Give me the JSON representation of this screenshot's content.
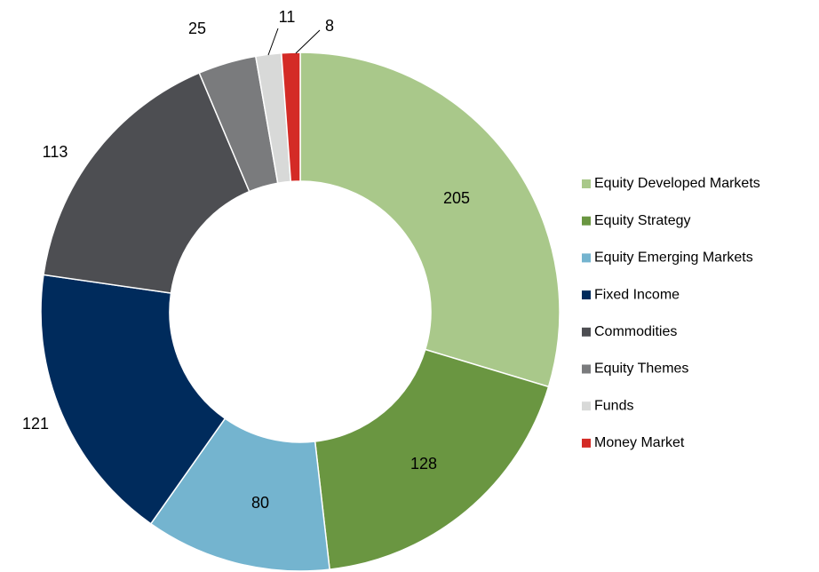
{
  "chart_data": {
    "type": "donut",
    "categories": [
      "Equity Developed Markets",
      "Equity Strategy",
      "Equity Emerging Markets",
      "Fixed Income",
      "Commodities",
      "Equity Themes",
      "Funds",
      "Money Market"
    ],
    "values": [
      205,
      128,
      80,
      121,
      113,
      25,
      11,
      8
    ],
    "colors": [
      "#a9c88a",
      "#6a9641",
      "#74b4cf",
      "#002b5c",
      "#4d4e52",
      "#7a7b7d",
      "#d8d9d8",
      "#d42b26"
    ],
    "legend": "right"
  }
}
